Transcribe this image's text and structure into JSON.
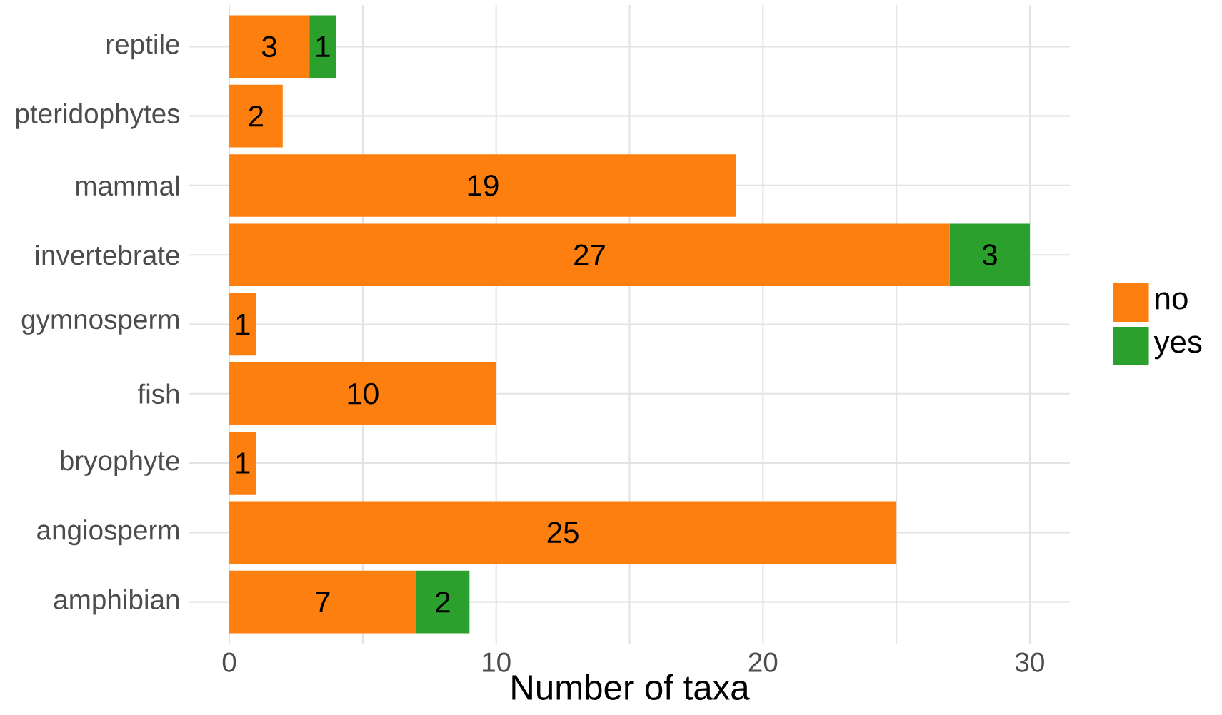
{
  "chart_data": {
    "type": "bar",
    "orientation": "horizontal",
    "stacked": true,
    "xlabel": "Number of taxa",
    "categories": [
      "reptile",
      "pteridophytes",
      "mammal",
      "invertebrate",
      "gymnosperm",
      "fish",
      "bryophyte",
      "angiosperm",
      "amphibian"
    ],
    "series": [
      {
        "name": "no",
        "color": "#fd7f0f",
        "values": [
          3,
          2,
          19,
          27,
          1,
          10,
          1,
          25,
          7
        ]
      },
      {
        "name": "yes",
        "color": "#2ca02c",
        "values": [
          1,
          null,
          null,
          3,
          null,
          null,
          null,
          null,
          2
        ]
      }
    ],
    "xlim": [
      -1.5,
      31.5
    ],
    "xticks": [
      0,
      {
        "value": 5,
        "label": null
      },
      10,
      {
        "value": 15,
        "label": null
      },
      20,
      {
        "value": 25,
        "label": null
      },
      30
    ],
    "grid": true,
    "legend": "right",
    "data_labels": true
  }
}
